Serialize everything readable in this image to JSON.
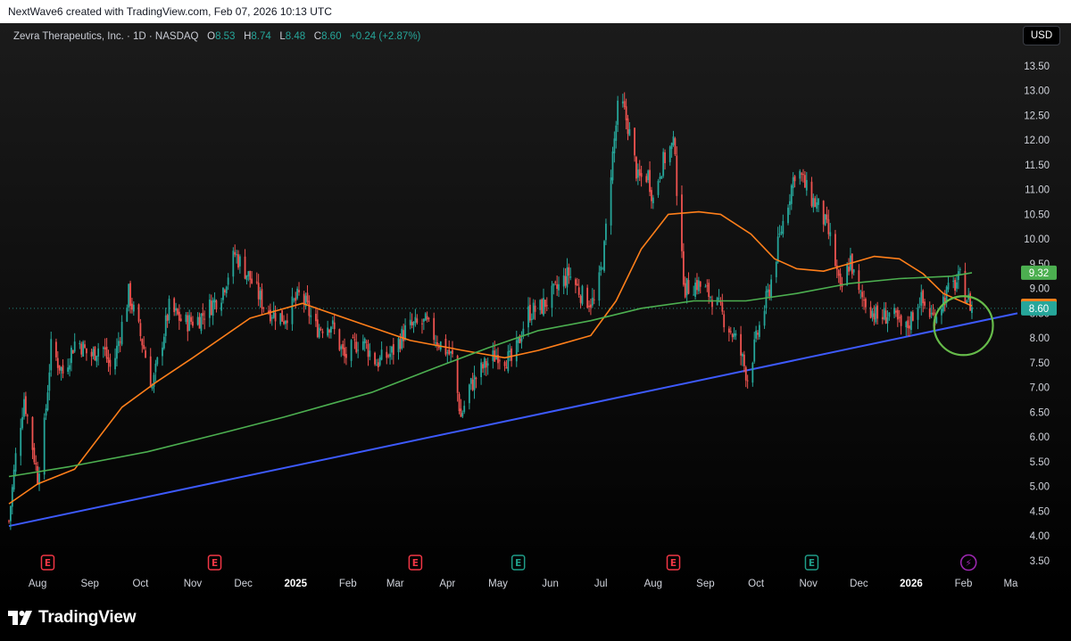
{
  "header": {
    "attribution": "NextWave6 created with TradingView.com, Feb 07, 2026 10:13 UTC"
  },
  "legend": {
    "symbol": "Zevra Therapeutics, Inc. · 1D · NASDAQ",
    "open_label": "O",
    "open": "8.53",
    "high_label": "H",
    "high": "8.74",
    "low_label": "L",
    "low": "8.48",
    "close_label": "C",
    "close": "8.60",
    "change": "+0.24 (+2.87%)"
  },
  "currency": "USD",
  "footer": {
    "brand": "TradingView"
  },
  "colors": {
    "up": "#26a69a",
    "down": "#ef5350",
    "ma_short": "#ff7f1a",
    "ma_long": "#4caf50",
    "trendline": "#3d5afe",
    "circle": "#66bb4a",
    "earnings": "#f23645",
    "dividend": "#1f9e89",
    "news": "#9c27b0"
  },
  "chart_data": {
    "type": "line",
    "title": "Zevra Therapeutics, Inc. · 1D · NASDAQ",
    "xlabel": "",
    "ylabel": "",
    "x_tick_labels": [
      "Aug",
      "Sep",
      "Oct",
      "Nov",
      "Dec",
      "2025",
      "Feb",
      "Mar",
      "Apr",
      "May",
      "Jun",
      "Jul",
      "Aug",
      "Sep",
      "Oct",
      "Nov",
      "Dec",
      "2026",
      "Feb",
      "Ma"
    ],
    "y_tick_labels": [
      "3.50",
      "4.00",
      "4.50",
      "5.00",
      "5.50",
      "6.00",
      "6.50",
      "7.00",
      "7.50",
      "8.00",
      "8.50",
      "9.00",
      "9.50",
      "10.00",
      "10.50",
      "11.00",
      "11.50",
      "12.00",
      "12.50",
      "13.00",
      "13.50"
    ],
    "ylim": [
      3.3,
      13.75
    ],
    "xlim": [
      "2024-07-15",
      "2026-03-05"
    ],
    "grid": false,
    "price_path": [
      [
        "2024-07-15",
        4.3
      ],
      [
        "2024-07-19",
        5.6
      ],
      [
        "2024-07-24",
        6.8
      ],
      [
        "2024-07-28",
        6.0
      ],
      [
        "2024-08-01",
        5.2
      ],
      [
        "2024-08-05",
        6.2
      ],
      [
        "2024-08-09",
        7.8
      ],
      [
        "2024-08-16",
        7.3
      ],
      [
        "2024-08-24",
        8.0
      ],
      [
        "2024-09-01",
        7.6
      ],
      [
        "2024-09-08",
        7.9
      ],
      [
        "2024-09-14",
        7.3
      ],
      [
        "2024-09-24",
        8.9
      ],
      [
        "2024-10-03",
        7.8
      ],
      [
        "2024-10-08",
        7.0
      ],
      [
        "2024-10-18",
        8.6
      ],
      [
        "2024-10-27",
        8.3
      ],
      [
        "2024-11-05",
        8.4
      ],
      [
        "2024-11-18",
        8.9
      ],
      [
        "2024-11-26",
        9.7
      ],
      [
        "2024-12-05",
        9.2
      ],
      [
        "2024-12-14",
        8.6
      ],
      [
        "2024-12-25",
        8.4
      ],
      [
        "2025-01-04",
        8.9
      ],
      [
        "2025-01-13",
        8.2
      ],
      [
        "2025-01-22",
        8.3
      ],
      [
        "2025-01-30",
        7.6
      ],
      [
        "2025-02-09",
        8.0
      ],
      [
        "2025-02-18",
        7.5
      ],
      [
        "2025-02-27",
        7.7
      ],
      [
        "2025-03-08",
        8.2
      ],
      [
        "2025-03-19",
        8.3
      ],
      [
        "2025-03-25",
        8.0
      ],
      [
        "2025-04-04",
        7.6
      ],
      [
        "2025-04-09",
        6.4
      ],
      [
        "2025-04-14",
        7.0
      ],
      [
        "2025-04-22",
        7.4
      ],
      [
        "2025-05-01",
        7.7
      ],
      [
        "2025-05-10",
        7.5
      ],
      [
        "2025-05-18",
        8.5
      ],
      [
        "2025-05-26",
        8.6
      ],
      [
        "2025-06-03",
        8.9
      ],
      [
        "2025-06-12",
        9.3
      ],
      [
        "2025-06-21",
        8.8
      ],
      [
        "2025-06-28",
        8.7
      ],
      [
        "2025-07-03",
        9.8
      ],
      [
        "2025-07-07",
        11.4
      ],
      [
        "2025-07-12",
        12.9
      ],
      [
        "2025-07-17",
        12.3
      ],
      [
        "2025-07-23",
        11.2
      ],
      [
        "2025-07-29",
        11.3
      ],
      [
        "2025-08-01",
        10.8
      ],
      [
        "2025-08-05",
        11.4
      ],
      [
        "2025-08-10",
        11.8
      ],
      [
        "2025-08-14",
        11.9
      ],
      [
        "2025-08-16",
        10.1
      ],
      [
        "2025-08-20",
        9.0
      ],
      [
        "2025-08-27",
        9.1
      ],
      [
        "2025-09-06",
        8.8
      ],
      [
        "2025-09-12",
        8.4
      ],
      [
        "2025-09-20",
        7.9
      ],
      [
        "2025-09-26",
        7.2
      ],
      [
        "2025-10-02",
        8.1
      ],
      [
        "2025-10-09",
        9.0
      ],
      [
        "2025-10-16",
        10.2
      ],
      [
        "2025-10-25",
        11.5
      ],
      [
        "2025-11-01",
        10.9
      ],
      [
        "2025-11-08",
        10.6
      ],
      [
        "2025-11-15",
        9.9
      ],
      [
        "2025-11-20",
        8.9
      ],
      [
        "2025-11-26",
        9.6
      ],
      [
        "2025-11-30",
        8.9
      ],
      [
        "2025-12-06",
        8.7
      ],
      [
        "2025-12-12",
        8.4
      ],
      [
        "2025-12-20",
        8.5
      ],
      [
        "2025-12-28",
        8.1
      ],
      [
        "2026-01-06",
        8.8
      ],
      [
        "2026-01-14",
        8.4
      ],
      [
        "2026-01-22",
        8.9
      ],
      [
        "2026-01-30",
        9.2
      ],
      [
        "2026-02-02",
        8.9
      ],
      [
        "2026-02-06",
        8.6
      ]
    ],
    "series": [
      {
        "name": "",
        "values": [
          [
            "2024-07-15",
            4.65
          ],
          [
            "2024-08-01",
            5.05
          ],
          [
            "2024-08-23",
            5.35
          ],
          [
            "2024-09-20",
            6.6
          ],
          [
            "2024-10-10",
            7.1
          ],
          [
            "2024-11-01",
            7.6
          ],
          [
            "2024-12-05",
            8.4
          ],
          [
            "2025-01-05",
            8.7
          ],
          [
            "2025-02-08",
            8.3
          ],
          [
            "2025-03-10",
            7.95
          ],
          [
            "2025-04-10",
            7.75
          ],
          [
            "2025-05-05",
            7.6
          ],
          [
            "2025-05-25",
            7.75
          ],
          [
            "2025-06-25",
            8.05
          ],
          [
            "2025-07-10",
            8.75
          ],
          [
            "2025-07-25",
            9.8
          ],
          [
            "2025-08-10",
            10.5
          ],
          [
            "2025-08-28",
            10.55
          ],
          [
            "2025-09-10",
            10.5
          ],
          [
            "2025-09-28",
            10.1
          ],
          [
            "2025-10-12",
            9.6
          ],
          [
            "2025-10-25",
            9.4
          ],
          [
            "2025-11-10",
            9.35
          ],
          [
            "2025-11-25",
            9.5
          ],
          [
            "2025-12-10",
            9.65
          ],
          [
            "2025-12-25",
            9.6
          ],
          [
            "2026-01-08",
            9.3
          ],
          [
            "2026-01-20",
            8.9
          ],
          [
            "2026-02-06",
            8.65
          ]
        ]
      },
      {
        "name": "",
        "values": [
          [
            "2024-07-15",
            5.2
          ],
          [
            "2024-08-20",
            5.4
          ],
          [
            "2024-10-05",
            5.7
          ],
          [
            "2024-11-15",
            6.05
          ],
          [
            "2024-12-25",
            6.4
          ],
          [
            "2025-02-15",
            6.9
          ],
          [
            "2025-03-25",
            7.4
          ],
          [
            "2025-04-25",
            7.8
          ],
          [
            "2025-05-25",
            8.15
          ],
          [
            "2025-06-25",
            8.35
          ],
          [
            "2025-07-25",
            8.6
          ],
          [
            "2025-08-25",
            8.75
          ],
          [
            "2025-09-25",
            8.75
          ],
          [
            "2025-10-25",
            8.9
          ],
          [
            "2025-11-25",
            9.1
          ],
          [
            "2025-12-25",
            9.2
          ],
          [
            "2026-01-25",
            9.25
          ],
          [
            "2026-02-06",
            9.32
          ]
        ]
      }
    ],
    "trendline": [
      [
        "2024-07-15",
        4.2
      ],
      [
        "2026-03-05",
        8.5
      ]
    ],
    "price_labels": [
      {
        "value": "9.32",
        "color": "#4caf50"
      },
      {
        "value": "8.65",
        "color": "#ff7f1a"
      },
      {
        "value": "8.60",
        "color": "#26a69a"
      }
    ],
    "last_price": 8.6,
    "events": [
      {
        "date": "2024-08-07",
        "label": "E",
        "kind": "earnings"
      },
      {
        "date": "2024-11-14",
        "label": "E",
        "kind": "earnings"
      },
      {
        "date": "2025-03-13",
        "label": "E",
        "kind": "earnings"
      },
      {
        "date": "2025-05-13",
        "label": "E",
        "kind": "dividend"
      },
      {
        "date": "2025-08-13",
        "label": "E",
        "kind": "earnings"
      },
      {
        "date": "2025-11-03",
        "label": "E",
        "kind": "dividend"
      },
      {
        "date": "2026-02-04",
        "label": "⚡",
        "kind": "news"
      }
    ],
    "circle_marker": {
      "date": "2026-02-01",
      "value": 8.25
    }
  }
}
